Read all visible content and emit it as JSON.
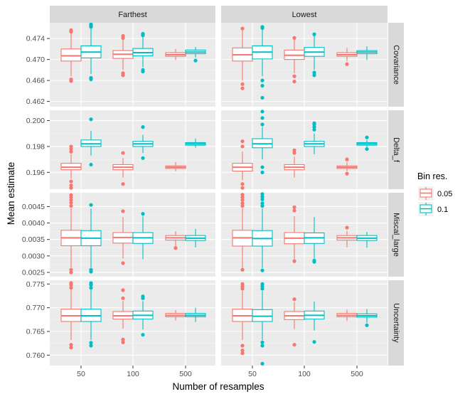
{
  "chart_data": {
    "type": "boxplot",
    "xlabel": "Number of resamples",
    "ylabel": "Mean estimate",
    "categories": [
      "50",
      "100",
      "500"
    ],
    "facet_columns": [
      "Farthest",
      "Lowest"
    ],
    "facet_rows": [
      {
        "name": "Covariance",
        "ylim": [
          0.461,
          0.477
        ],
        "ticks": [
          0.462,
          0.466,
          0.47,
          0.474
        ],
        "tick_labels": [
          "0.462",
          "0.466",
          "0.470",
          "0.474"
        ]
      },
      {
        "name": "Delta_f",
        "ylim": [
          0.1947,
          0.2008
        ],
        "ticks": [
          0.196,
          0.198,
          0.2
        ],
        "tick_labels": [
          "0.196",
          "0.198",
          "0.200"
        ]
      },
      {
        "name": "Miscal_large",
        "ylim": [
          0.00237,
          0.00492
        ],
        "ticks": [
          0.0025,
          0.003,
          0.0035,
          0.004,
          0.0045
        ],
        "tick_labels": [
          "0.0025",
          "0.0030",
          "0.0035",
          "0.0040",
          "0.0045"
        ]
      },
      {
        "name": "Uncertainty",
        "ylim": [
          0.7578,
          0.7758
        ],
        "ticks": [
          0.76,
          0.765,
          0.77,
          0.775
        ],
        "tick_labels": [
          "0.760",
          "0.765",
          "0.770",
          "0.775"
        ]
      }
    ],
    "legend": {
      "title": "Bin res.",
      "position": "right",
      "entries": [
        {
          "label": "0.05",
          "color": "#F8766D"
        },
        {
          "label": "0.1",
          "color": "#00BFC4"
        }
      ]
    },
    "grid": true,
    "panels": [
      {
        "row": 0,
        "col": 0,
        "boxes": [
          {
            "cat": 0,
            "series": 0,
            "q1": 0.4697,
            "med": 0.4707,
            "q3": 0.472,
            "wlo": 0.4668,
            "whi": 0.475,
            "out": [
              0.4753,
              0.4756,
              0.4662,
              0.4659
            ]
          },
          {
            "cat": 0,
            "series": 1,
            "q1": 0.4703,
            "med": 0.4714,
            "q3": 0.4726,
            "wlo": 0.4672,
            "whi": 0.476,
            "out": [
              0.4762,
              0.4765,
              0.4767,
              0.4665,
              0.4662
            ]
          },
          {
            "cat": 1,
            "series": 0,
            "q1": 0.4702,
            "med": 0.471,
            "q3": 0.4717,
            "wlo": 0.468,
            "whi": 0.4738,
            "out": [
              0.4741,
              0.4745,
              0.4674,
              0.467
            ]
          },
          {
            "cat": 1,
            "series": 1,
            "q1": 0.4707,
            "med": 0.4713,
            "q3": 0.4721,
            "wlo": 0.4685,
            "whi": 0.4743,
            "out": [
              0.4746,
              0.4749,
              0.468,
              0.4677
            ]
          },
          {
            "cat": 2,
            "series": 0,
            "q1": 0.4706,
            "med": 0.4709,
            "q3": 0.4713,
            "wlo": 0.4699,
            "whi": 0.472,
            "out": []
          },
          {
            "cat": 2,
            "series": 1,
            "q1": 0.4711,
            "med": 0.4714,
            "q3": 0.4718,
            "wlo": 0.4704,
            "whi": 0.4724,
            "out": [
              0.4698
            ]
          }
        ]
      },
      {
        "row": 0,
        "col": 1,
        "boxes": [
          {
            "cat": 0,
            "series": 0,
            "q1": 0.4697,
            "med": 0.4709,
            "q3": 0.4722,
            "wlo": 0.466,
            "whi": 0.4755,
            "out": [
              0.4759,
              0.4653,
              0.4645
            ]
          },
          {
            "cat": 0,
            "series": 1,
            "q1": 0.4701,
            "med": 0.4714,
            "q3": 0.4726,
            "wlo": 0.4668,
            "whi": 0.4757,
            "out": [
              0.476,
              0.4762,
              0.466,
              0.465,
              0.4627
            ]
          },
          {
            "cat": 1,
            "series": 0,
            "q1": 0.47,
            "med": 0.4708,
            "q3": 0.4718,
            "wlo": 0.4674,
            "whi": 0.4739,
            "out": [
              0.4741,
              0.4668,
              0.4658
            ]
          },
          {
            "cat": 1,
            "series": 1,
            "q1": 0.4706,
            "med": 0.4714,
            "q3": 0.4723,
            "wlo": 0.468,
            "whi": 0.4745,
            "out": [
              0.4748,
              0.4675,
              0.467
            ]
          },
          {
            "cat": 2,
            "series": 0,
            "q1": 0.4706,
            "med": 0.4709,
            "q3": 0.4713,
            "wlo": 0.4697,
            "whi": 0.4722,
            "out": [
              0.4691
            ]
          },
          {
            "cat": 2,
            "series": 1,
            "q1": 0.4711,
            "med": 0.4714,
            "q3": 0.4717,
            "wlo": 0.4699,
            "whi": 0.4725,
            "out": []
          }
        ]
      },
      {
        "row": 1,
        "col": 0,
        "boxes": [
          {
            "cat": 0,
            "series": 0,
            "q1": 0.1962,
            "med": 0.1964,
            "q3": 0.1967,
            "wlo": 0.1955,
            "whi": 0.1974,
            "out": [
              0.1976,
              0.1978,
              0.198,
              0.1953,
              0.195,
              0.1948
            ]
          },
          {
            "cat": 0,
            "series": 1,
            "q1": 0.198,
            "med": 0.1982,
            "q3": 0.1985,
            "wlo": 0.1973,
            "whi": 0.1992,
            "out": [
              0.2001,
              0.1966
            ]
          },
          {
            "cat": 1,
            "series": 0,
            "q1": 0.1962,
            "med": 0.1964,
            "q3": 0.1966,
            "wlo": 0.1956,
            "whi": 0.1971,
            "out": [
              0.1975,
              0.1951
            ]
          },
          {
            "cat": 1,
            "series": 1,
            "q1": 0.198,
            "med": 0.1982,
            "q3": 0.1984,
            "wlo": 0.1975,
            "whi": 0.1989,
            "out": [
              0.1995,
              0.1971
            ]
          },
          {
            "cat": 2,
            "series": 0,
            "q1": 0.1963,
            "med": 0.1964,
            "q3": 0.1965,
            "wlo": 0.1961,
            "whi": 0.1968,
            "out": []
          },
          {
            "cat": 2,
            "series": 1,
            "q1": 0.1981,
            "med": 0.1982,
            "q3": 0.1983,
            "wlo": 0.1979,
            "whi": 0.1986,
            "out": []
          }
        ]
      },
      {
        "row": 1,
        "col": 1,
        "boxes": [
          {
            "cat": 0,
            "series": 0,
            "q1": 0.1961,
            "med": 0.1964,
            "q3": 0.1967,
            "wlo": 0.1954,
            "whi": 0.1976,
            "out": [
              0.198,
              0.1984,
              0.1951,
              0.1948
            ]
          },
          {
            "cat": 0,
            "series": 1,
            "q1": 0.1979,
            "med": 0.1982,
            "q3": 0.1986,
            "wlo": 0.197,
            "whi": 0.1995,
            "out": [
              0.1997,
              0.2002,
              0.2007,
              0.1964,
              0.196
            ]
          },
          {
            "cat": 1,
            "series": 0,
            "q1": 0.1962,
            "med": 0.1964,
            "q3": 0.1966,
            "wlo": 0.1956,
            "whi": 0.1972,
            "out": [
              0.1975,
              0.1977
            ]
          },
          {
            "cat": 1,
            "series": 1,
            "q1": 0.198,
            "med": 0.1982,
            "q3": 0.1984,
            "wlo": 0.1974,
            "whi": 0.199,
            "out": [
              0.1993,
              0.1995,
              0.1997,
              0.1998
            ]
          },
          {
            "cat": 2,
            "series": 0,
            "q1": 0.1963,
            "med": 0.1964,
            "q3": 0.1965,
            "wlo": 0.1961,
            "whi": 0.1968,
            "out": [
              0.197,
              0.1959
            ]
          },
          {
            "cat": 2,
            "series": 1,
            "q1": 0.1981,
            "med": 0.1982,
            "q3": 0.1983,
            "wlo": 0.1979,
            "whi": 0.1985,
            "out": [
              0.1987,
              0.1978
            ]
          }
        ]
      },
      {
        "row": 2,
        "col": 0,
        "boxes": [
          {
            "cat": 0,
            "series": 0,
            "q1": 0.00331,
            "med": 0.00355,
            "q3": 0.00378,
            "wlo": 0.00265,
            "whi": 0.00445,
            "out": [
              0.00452,
              0.00462,
              0.0047,
              0.00478,
              0.00485,
              0.00258,
              0.0025
            ]
          },
          {
            "cat": 0,
            "series": 1,
            "q1": 0.00331,
            "med": 0.00354,
            "q3": 0.00377,
            "wlo": 0.00265,
            "whi": 0.00444,
            "out": [
              0.00455,
              0.00258,
              0.00252
            ]
          },
          {
            "cat": 1,
            "series": 0,
            "q1": 0.00339,
            "med": 0.00356,
            "q3": 0.00371,
            "wlo": 0.00292,
            "whi": 0.00418,
            "out": [
              0.00436,
              0.00278
            ]
          },
          {
            "cat": 1,
            "series": 1,
            "q1": 0.00338,
            "med": 0.00355,
            "q3": 0.00371,
            "wlo": 0.0029,
            "whi": 0.0042,
            "out": [
              0.00428
            ]
          },
          {
            "cat": 2,
            "series": 0,
            "q1": 0.00348,
            "med": 0.00355,
            "q3": 0.00362,
            "wlo": 0.00326,
            "whi": 0.00375,
            "out": [
              0.00324
            ]
          },
          {
            "cat": 2,
            "series": 1,
            "q1": 0.00347,
            "med": 0.00354,
            "q3": 0.00362,
            "wlo": 0.00326,
            "whi": 0.00382,
            "out": []
          }
        ]
      },
      {
        "row": 2,
        "col": 1,
        "boxes": [
          {
            "cat": 0,
            "series": 0,
            "q1": 0.0033,
            "med": 0.00355,
            "q3": 0.00378,
            "wlo": 0.00264,
            "whi": 0.00445,
            "out": [
              0.00452,
              0.0046,
              0.0047,
              0.00478,
              0.00486,
              0.00258
            ]
          },
          {
            "cat": 0,
            "series": 1,
            "q1": 0.0033,
            "med": 0.00353,
            "q3": 0.00377,
            "wlo": 0.00263,
            "whi": 0.00444,
            "out": [
              0.00452,
              0.0046,
              0.00472,
              0.0048,
              0.00488,
              0.00256
            ]
          },
          {
            "cat": 1,
            "series": 0,
            "q1": 0.00337,
            "med": 0.00354,
            "q3": 0.00371,
            "wlo": 0.0029,
            "whi": 0.0042,
            "out": [
              0.00438,
              0.00448,
              0.00284
            ]
          },
          {
            "cat": 1,
            "series": 1,
            "q1": 0.00338,
            "med": 0.00355,
            "q3": 0.0037,
            "wlo": 0.00292,
            "whi": 0.00418,
            "out": [
              0.00286,
              0.00282
            ]
          },
          {
            "cat": 2,
            "series": 0,
            "q1": 0.00348,
            "med": 0.00355,
            "q3": 0.00362,
            "wlo": 0.00326,
            "whi": 0.00376,
            "out": [
              0.00386
            ]
          },
          {
            "cat": 2,
            "series": 1,
            "q1": 0.00347,
            "med": 0.00354,
            "q3": 0.00362,
            "wlo": 0.00325,
            "whi": 0.00373,
            "out": []
          }
        ]
      },
      {
        "row": 3,
        "col": 0,
        "boxes": [
          {
            "cat": 0,
            "series": 0,
            "q1": 0.7671,
            "med": 0.7683,
            "q3": 0.7697,
            "wlo": 0.7632,
            "whi": 0.7738,
            "out": [
              0.7742,
              0.7748,
              0.7752,
              0.7622,
              0.7616
            ]
          },
          {
            "cat": 0,
            "series": 1,
            "q1": 0.7671,
            "med": 0.7683,
            "q3": 0.7697,
            "wlo": 0.7632,
            "whi": 0.7738,
            "out": [
              0.7742,
              0.7748,
              0.7752,
              0.7626,
              0.762
            ]
          },
          {
            "cat": 1,
            "series": 0,
            "q1": 0.7676,
            "med": 0.7683,
            "q3": 0.7692,
            "wlo": 0.7656,
            "whi": 0.7714,
            "out": [
              0.772,
              0.7737,
              0.7633,
              0.7627
            ]
          },
          {
            "cat": 1,
            "series": 1,
            "q1": 0.7676,
            "med": 0.7684,
            "q3": 0.7693,
            "wlo": 0.7654,
            "whi": 0.7714,
            "out": [
              0.772,
              0.7724,
              0.7643
            ]
          },
          {
            "cat": 2,
            "series": 0,
            "q1": 0.7681,
            "med": 0.7684,
            "q3": 0.7688,
            "wlo": 0.7673,
            "whi": 0.7695,
            "out": []
          },
          {
            "cat": 2,
            "series": 1,
            "q1": 0.7681,
            "med": 0.7684,
            "q3": 0.7688,
            "wlo": 0.767,
            "whi": 0.77,
            "out": []
          }
        ]
      },
      {
        "row": 3,
        "col": 1,
        "boxes": [
          {
            "cat": 0,
            "series": 0,
            "q1": 0.7671,
            "med": 0.7683,
            "q3": 0.7697,
            "wlo": 0.7632,
            "whi": 0.7735,
            "out": [
              0.774,
              0.7745,
              0.775,
              0.762,
              0.761,
              0.7604
            ]
          },
          {
            "cat": 0,
            "series": 1,
            "q1": 0.7671,
            "med": 0.7682,
            "q3": 0.7696,
            "wlo": 0.7632,
            "whi": 0.7735,
            "out": [
              0.774,
              0.7745,
              0.775,
              0.7627,
              0.762,
              0.7582
            ]
          },
          {
            "cat": 1,
            "series": 0,
            "q1": 0.7675,
            "med": 0.7683,
            "q3": 0.7692,
            "wlo": 0.7655,
            "whi": 0.7712,
            "out": [
              0.7718,
              0.7622
            ]
          },
          {
            "cat": 1,
            "series": 1,
            "q1": 0.7676,
            "med": 0.7684,
            "q3": 0.7693,
            "wlo": 0.7652,
            "whi": 0.7713,
            "out": [
              0.7628
            ]
          },
          {
            "cat": 2,
            "series": 0,
            "q1": 0.7681,
            "med": 0.7684,
            "q3": 0.7688,
            "wlo": 0.7672,
            "whi": 0.7696,
            "out": []
          },
          {
            "cat": 2,
            "series": 1,
            "q1": 0.768,
            "med": 0.7683,
            "q3": 0.7687,
            "wlo": 0.7668,
            "whi": 0.7697,
            "out": [
              0.7663
            ]
          }
        ]
      }
    ]
  }
}
